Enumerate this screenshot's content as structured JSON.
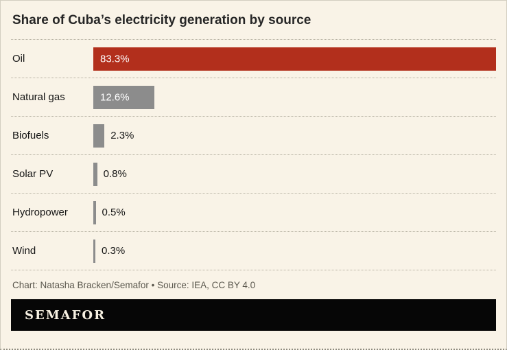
{
  "title": "Share of Cuba’s electricity generation by source",
  "chart_data": {
    "type": "bar",
    "orientation": "horizontal",
    "title": "Share of Cuba’s electricity generation by source",
    "categories": [
      "Oil",
      "Natural gas",
      "Biofuels",
      "Solar PV",
      "Hydropower",
      "Wind"
    ],
    "values": [
      83.3,
      12.6,
      2.3,
      0.8,
      0.5,
      0.3
    ],
    "value_labels": [
      "83.3%",
      "12.6%",
      "2.3%",
      "0.8%",
      "0.5%",
      "0.3%"
    ],
    "unit": "%",
    "x_max": 83.3,
    "grid": false,
    "legend": false,
    "bar_colors": [
      "#b22f1c",
      "#8c8c8c",
      "#8c8c8c",
      "#8c8c8c",
      "#8c8c8c",
      "#8c8c8c"
    ],
    "label_inside": [
      true,
      true,
      false,
      false,
      false,
      false
    ]
  },
  "footer": {
    "credit": "Chart: Natasha Bracken/Semafor • Source: IEA, CC BY 4.0",
    "brand": "SEMAFOR"
  },
  "colors": {
    "background": "#f9f3e7",
    "oil_bar": "#b22f1c",
    "gray_bar": "#8c8c8c",
    "brand_bar_background": "#060606",
    "brand_text": "#f7f1e2",
    "credit_text": "#5b584e",
    "separator": "#b3ae9f"
  }
}
